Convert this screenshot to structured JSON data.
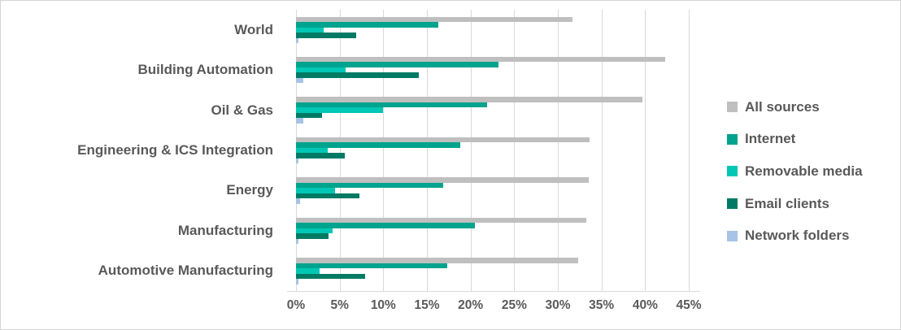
{
  "figure": {
    "background": "#ffffff",
    "border_color": "#d5d5d5",
    "gridline_color": "#d9d9d9",
    "text_color": "#595959"
  },
  "chart_data": {
    "type": "bar",
    "orientation": "horizontal",
    "title": "",
    "xlabel": "",
    "ylabel": "",
    "grid": "vertical",
    "legend_position": "right",
    "xlim": [
      0,
      46.3
    ],
    "tick_step": 5,
    "x_ticks": [
      "0%",
      "5%",
      "10%",
      "15%",
      "20%",
      "25%",
      "30%",
      "35%",
      "40%",
      "45%"
    ],
    "categories": [
      "World",
      "Building Automation",
      "Oil & Gas",
      "Engineering & ICS Integration",
      "Energy",
      "Manufacturing",
      "Automotive Manufacturing"
    ],
    "series": [
      {
        "name": "All sources",
        "color": "#bfbfbf",
        "values": [
          31.7,
          42.3,
          39.7,
          33.6,
          33.5,
          33.3,
          32.3
        ]
      },
      {
        "name": "Internet",
        "color": "#00a38d",
        "values": [
          16.3,
          23.2,
          21.9,
          18.8,
          16.9,
          20.5,
          17.3
        ]
      },
      {
        "name": "Removable media",
        "color": "#00c7b5",
        "values": [
          3.2,
          5.7,
          10.0,
          3.6,
          4.5,
          4.2,
          2.7
        ]
      },
      {
        "name": "Email clients",
        "color": "#007a64",
        "values": [
          6.9,
          14.1,
          3.0,
          5.6,
          7.3,
          3.7,
          7.9
        ]
      },
      {
        "name": "Network folders",
        "color": "#a7c4e6",
        "values": [
          0.3,
          0.8,
          0.8,
          0.3,
          0.5,
          0.3,
          0.3
        ]
      }
    ]
  }
}
